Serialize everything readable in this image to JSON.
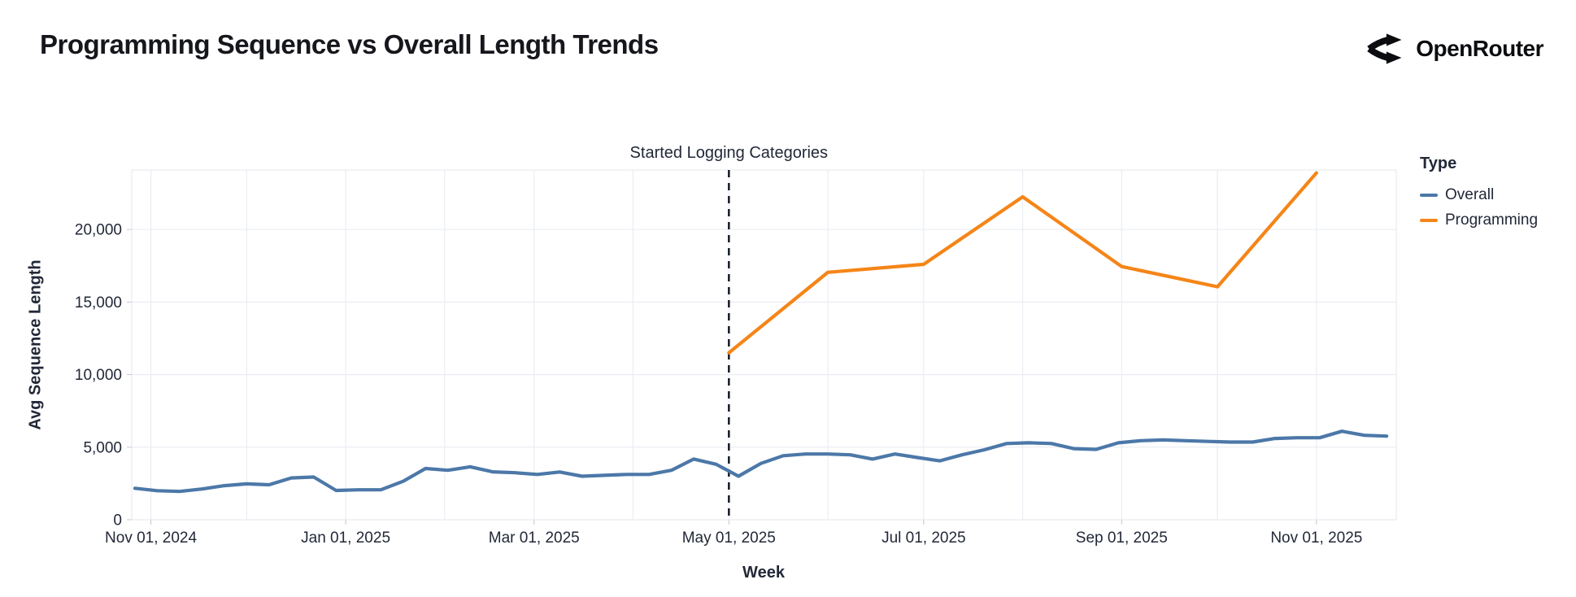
{
  "page": {
    "title": "Programming Sequence vs Overall Length Trends",
    "logo_text": "OpenRouter"
  },
  "chart_data": {
    "type": "line",
    "title": "Programming Sequence vs Overall Length Trends",
    "xlabel": "Week",
    "ylabel": "Avg Sequence Length",
    "x_domain": [
      "2024-10-26",
      "2025-11-26"
    ],
    "ylim": [
      0,
      24100
    ],
    "grid": true,
    "legend": {
      "title": "Type",
      "position": "right"
    },
    "y_ticks": [
      {
        "value": 0,
        "label": "0"
      },
      {
        "value": 5000,
        "label": "5,000"
      },
      {
        "value": 10000,
        "label": "10,000"
      },
      {
        "value": 15000,
        "label": "15,000"
      },
      {
        "value": 20000,
        "label": "20,000"
      }
    ],
    "x_ticks": [
      {
        "date": "2024-11-01",
        "label": "Nov 01, 2024"
      },
      {
        "date": "2025-01-01",
        "label": "Jan 01, 2025"
      },
      {
        "date": "2025-03-01",
        "label": "Mar 01, 2025"
      },
      {
        "date": "2025-05-01",
        "label": "May 01, 2025"
      },
      {
        "date": "2025-07-01",
        "label": "Jul 01, 2025"
      },
      {
        "date": "2025-09-01",
        "label": "Sep 01, 2025"
      },
      {
        "date": "2025-11-01",
        "label": "Nov 01, 2025"
      }
    ],
    "grid_months": [
      "2024-11-01",
      "2024-12-01",
      "2025-01-01",
      "2025-02-01",
      "2025-03-01",
      "2025-04-01",
      "2025-05-01",
      "2025-06-01",
      "2025-07-01",
      "2025-08-01",
      "2025-09-01",
      "2025-10-01",
      "2025-11-01"
    ],
    "annotation": {
      "date": "2025-05-01",
      "text": "Started Logging Categories"
    },
    "series": [
      {
        "name": "Overall",
        "color": "#4c78a8",
        "cadence": "weekly",
        "start": "2024-10-27",
        "step_days": 7,
        "values": [
          2170,
          2000,
          1950,
          2120,
          2350,
          2470,
          2410,
          2880,
          2940,
          2020,
          2060,
          2060,
          2650,
          3530,
          3410,
          3650,
          3300,
          3240,
          3120,
          3290,
          3000,
          3060,
          3120,
          3120,
          3410,
          4180,
          3820,
          3000,
          3880,
          4410,
          4530,
          4530,
          4470,
          4180,
          4530,
          4290,
          4060,
          4470,
          4820,
          5250,
          5300,
          5250,
          4900,
          4850,
          5300,
          5450,
          5500,
          5450,
          5400,
          5350,
          5350,
          5600,
          5650,
          5650,
          6100,
          5820,
          5760
        ]
      },
      {
        "name": "Programming",
        "color": "#f58518",
        "cadence": "monthly",
        "points": [
          [
            "2025-05-01",
            11500
          ],
          [
            "2025-06-01",
            17050
          ],
          [
            "2025-07-01",
            17600
          ],
          [
            "2025-08-01",
            22250
          ],
          [
            "2025-09-01",
            17450
          ],
          [
            "2025-10-01",
            16050
          ],
          [
            "2025-11-01",
            23900
          ]
        ]
      }
    ],
    "colors": {
      "grid": "#e8eaf1",
      "annotation_rule": "#151a26",
      "text": "#222838"
    }
  }
}
